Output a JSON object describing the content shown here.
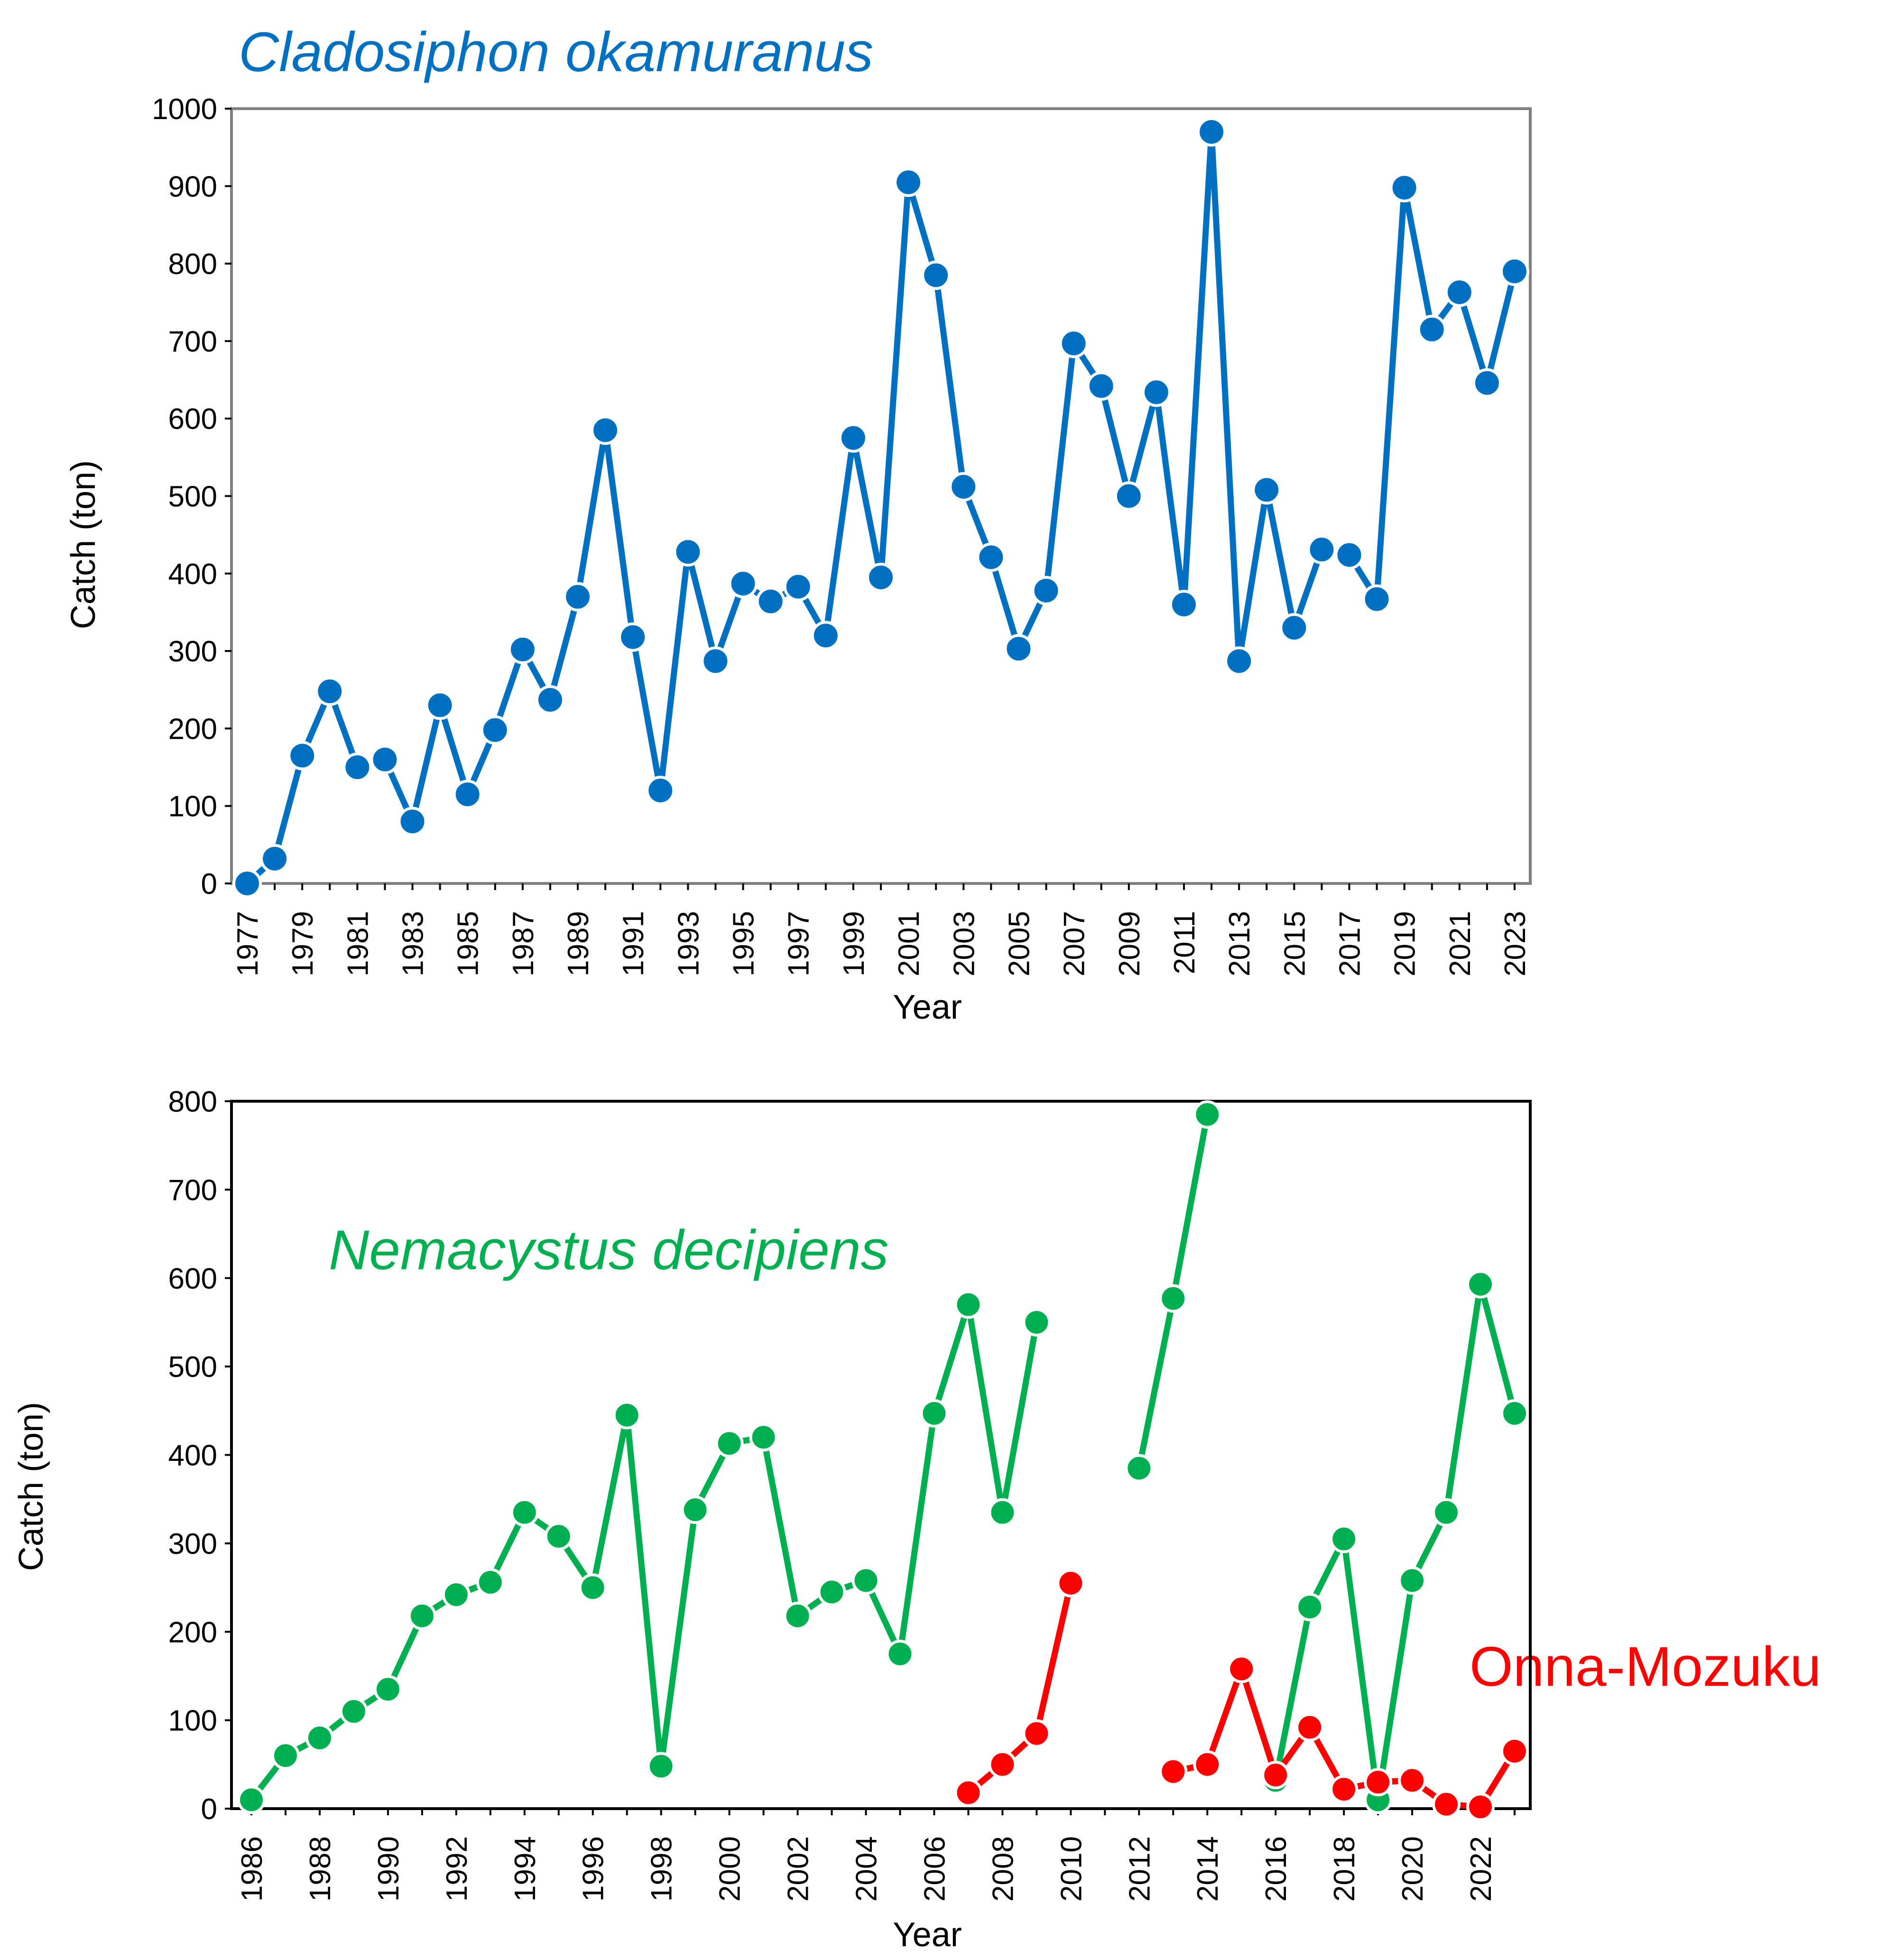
{
  "colors": {
    "cladosiphon": "#0070C0",
    "nemacystus": "#00B050",
    "onna": "#FF0000",
    "axis": "#000000",
    "top_frame": "#808080"
  },
  "chart_data": [
    {
      "type": "line",
      "title": "Cladosiphon okamuranus",
      "xlabel": "Year",
      "ylabel": "Catch (ton)",
      "xlim": [
        1977,
        2023
      ],
      "ylim": [
        0,
        1000
      ],
      "yticks": [
        0,
        100,
        200,
        300,
        400,
        500,
        600,
        700,
        800,
        900,
        1000
      ],
      "xtick_labels": [
        "1977",
        "1979",
        "1981",
        "1983",
        "1985",
        "1987",
        "1989",
        "1991",
        "1993",
        "1995",
        "1997",
        "1999",
        "2001",
        "2003",
        "2005",
        "2007",
        "2009",
        "2011",
        "2013",
        "2015",
        "2017",
        "2019",
        "2021",
        "2023"
      ],
      "grid": false,
      "series": [
        {
          "name": "Cladosiphon okamuranus",
          "color": "#0070C0",
          "x": [
            1977,
            1978,
            1979,
            1980,
            1981,
            1982,
            1983,
            1984,
            1985,
            1986,
            1987,
            1988,
            1989,
            1990,
            1991,
            1992,
            1993,
            1994,
            1995,
            1996,
            1997,
            1998,
            1999,
            2000,
            2001,
            2002,
            2003,
            2004,
            2005,
            2006,
            2007,
            2008,
            2009,
            2010,
            2011,
            2012,
            2013,
            2014,
            2015,
            2016,
            2017,
            2018,
            2019,
            2020,
            2021,
            2022,
            2023
          ],
          "values": [
            0,
            32,
            165,
            248,
            150,
            160,
            80,
            230,
            115,
            198,
            302,
            237,
            370,
            585,
            318,
            120,
            428,
            287,
            387,
            364,
            383,
            320,
            575,
            395,
            905,
            785,
            512,
            421,
            303,
            378,
            697,
            642,
            500,
            634,
            360,
            970,
            287,
            508,
            330,
            431,
            424,
            367,
            898,
            715,
            763,
            646,
            790
          ]
        }
      ]
    },
    {
      "type": "line",
      "xlabel": "Year",
      "ylabel": "Catch (ton)",
      "xlim": [
        1986,
        2023
      ],
      "ylim": [
        0,
        800
      ],
      "yticks": [
        0,
        100,
        200,
        300,
        400,
        500,
        600,
        700,
        800
      ],
      "xtick_labels": [
        "1986",
        "1988",
        "1990",
        "1992",
        "1994",
        "1996",
        "1998",
        "2000",
        "2002",
        "2004",
        "2006",
        "2008",
        "2010",
        "2012",
        "2014",
        "2016",
        "2018",
        "2020",
        "2022"
      ],
      "grid": false,
      "series": [
        {
          "name": "Nemacystus decipiens",
          "color": "#00B050",
          "x": [
            1986,
            1987,
            1988,
            1989,
            1990,
            1991,
            1992,
            1993,
            1994,
            1995,
            1996,
            1997,
            1998,
            1999,
            2000,
            2001,
            2002,
            2003,
            2004,
            2005,
            2006,
            2007,
            2008,
            2009,
            2010,
            2011,
            2012,
            2013,
            2014,
            2015,
            2016,
            2017,
            2018,
            2019,
            2020,
            2021,
            2022,
            2023
          ],
          "values": [
            10,
            60,
            80,
            110,
            135,
            218,
            242,
            256,
            335,
            308,
            250,
            445,
            48,
            338,
            413,
            420,
            218,
            245,
            258,
            175,
            447,
            570,
            335,
            550,
            null,
            null,
            385,
            577,
            785,
            null,
            32,
            228,
            305,
            10,
            258,
            335,
            593,
            447
          ]
        },
        {
          "name": "Onna-Mozuku",
          "color": "#FF0000",
          "x": [
            1986,
            1987,
            1988,
            1989,
            1990,
            1991,
            1992,
            1993,
            1994,
            1995,
            1996,
            1997,
            1998,
            1999,
            2000,
            2001,
            2002,
            2003,
            2004,
            2005,
            2006,
            2007,
            2008,
            2009,
            2010,
            2011,
            2012,
            2013,
            2014,
            2015,
            2016,
            2017,
            2018,
            2019,
            2020,
            2021,
            2022,
            2023
          ],
          "values": [
            null,
            null,
            null,
            null,
            null,
            null,
            null,
            null,
            null,
            null,
            null,
            null,
            null,
            null,
            null,
            null,
            null,
            null,
            null,
            null,
            null,
            18,
            50,
            85,
            255,
            null,
            null,
            42,
            50,
            158,
            38,
            92,
            22,
            30,
            32,
            5,
            2,
            65
          ]
        }
      ],
      "annotations": [
        "Nemacystus decipiens",
        "Onna-Mozuku"
      ]
    }
  ]
}
